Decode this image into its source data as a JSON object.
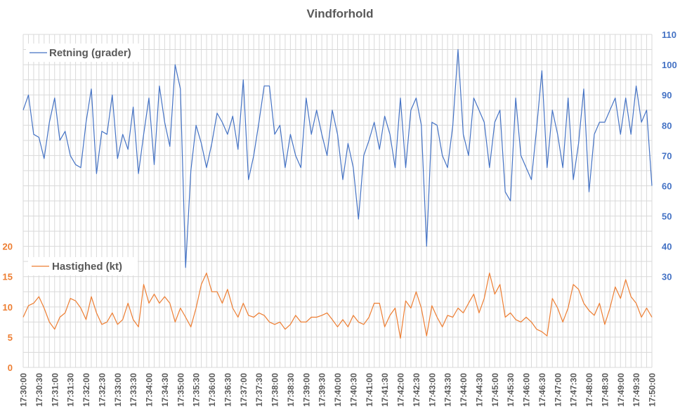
{
  "chart_data": {
    "type": "line",
    "title": "Vindforhold",
    "grid": true,
    "legend_placement": "inside-left",
    "x": {
      "start": "17:30:00",
      "end": "17:50:00",
      "sample_interval_seconds": 10,
      "tick_labels": [
        "17:30:00",
        "17:30:30",
        "17:31:00",
        "17:31:30",
        "17:32:00",
        "17:32:30",
        "17:33:00",
        "17:33:30",
        "17:34:00",
        "17:34:30",
        "17:35:00",
        "17:35:30",
        "17:36:00",
        "17:36:30",
        "17:37:00",
        "17:37:30",
        "17:38:00",
        "17:38:30",
        "17:39:00",
        "17:39:30",
        "17:40:00",
        "17:40:30",
        "17:41:00",
        "17:41:30",
        "17:42:00",
        "17:42:30",
        "17:43:00",
        "17:43:30",
        "17:44:00",
        "17:44:30",
        "17:45:00",
        "17:45:30",
        "17:46:00",
        "17:46:30",
        "17:47:00",
        "17:47:30",
        "17:48:00",
        "17:48:30",
        "17:49:00",
        "17:49:30",
        "17:50:00"
      ]
    },
    "y_left": {
      "range": [
        0,
        55
      ],
      "tick_labels": [
        "0",
        "5",
        "10",
        "15",
        "20"
      ],
      "color": "#ED7D31"
    },
    "y_right": {
      "range": [
        0,
        110
      ],
      "tick_labels": [
        "30",
        "40",
        "50",
        "60",
        "70",
        "80",
        "90",
        "100",
        "110"
      ],
      "color": "#4472C4"
    },
    "series": [
      {
        "name": "Retning (grader)",
        "axis": "right",
        "color": "#4472C4",
        "values": [
          85,
          90,
          77,
          76,
          69,
          81,
          89,
          75,
          78,
          70,
          67,
          66,
          81,
          92,
          64,
          78,
          77,
          90,
          69,
          77,
          72,
          86,
          64,
          77,
          89,
          67,
          93,
          81,
          73,
          100,
          92,
          33,
          65,
          80,
          74,
          66,
          74,
          84,
          81,
          77,
          83,
          72,
          95,
          62,
          70,
          81,
          93,
          93,
          77,
          80,
          66,
          77,
          70,
          66,
          89,
          77,
          85,
          77,
          70,
          85,
          77,
          62,
          74,
          66,
          49,
          70,
          75,
          81,
          72,
          83,
          77,
          66,
          89,
          66,
          85,
          89,
          80,
          40,
          81,
          80,
          70,
          66,
          80,
          105,
          77,
          70,
          89,
          85,
          81,
          66,
          81,
          85,
          58,
          55,
          89,
          70,
          66,
          62,
          79,
          98,
          66,
          85,
          77,
          66,
          89,
          62,
          74,
          92,
          58,
          77,
          81,
          81,
          85,
          89,
          77,
          89,
          77,
          93,
          81,
          85,
          60
        ]
      },
      {
        "name": "Hastighed (kt)",
        "axis": "left",
        "color": "#ED7D31",
        "values": [
          8.3,
          10.2,
          10.6,
          11.7,
          9.8,
          7.5,
          6.3,
          8.3,
          9.0,
          11.4,
          11.0,
          9.8,
          7.9,
          11.7,
          9.0,
          7.1,
          7.5,
          9.0,
          7.1,
          7.9,
          10.6,
          7.9,
          6.7,
          13.7,
          10.6,
          12.1,
          10.6,
          11.7,
          10.6,
          7.5,
          9.8,
          8.3,
          6.7,
          9.8,
          13.7,
          15.6,
          12.5,
          12.5,
          10.6,
          12.9,
          9.8,
          8.3,
          10.6,
          8.6,
          8.3,
          9.0,
          8.6,
          7.5,
          7.1,
          7.5,
          6.3,
          7.1,
          8.6,
          7.5,
          7.5,
          8.3,
          8.3,
          8.6,
          9.0,
          7.9,
          6.7,
          7.9,
          6.7,
          8.6,
          7.5,
          7.1,
          8.3,
          10.6,
          10.6,
          6.7,
          8.6,
          9.8,
          4.8,
          11.0,
          9.8,
          12.5,
          9.8,
          5.2,
          10.2,
          8.3,
          6.7,
          8.6,
          8.3,
          9.8,
          9.0,
          10.6,
          12.1,
          9.0,
          11.4,
          15.6,
          12.1,
          13.7,
          8.3,
          9.0,
          7.9,
          7.5,
          8.3,
          7.5,
          6.3,
          5.9,
          5.2,
          11.4,
          9.8,
          7.5,
          9.8,
          13.7,
          12.9,
          10.6,
          9.4,
          8.6,
          10.6,
          7.1,
          9.8,
          13.3,
          11.4,
          14.5,
          11.7,
          10.6,
          8.3,
          9.8,
          8.3
        ]
      }
    ]
  }
}
